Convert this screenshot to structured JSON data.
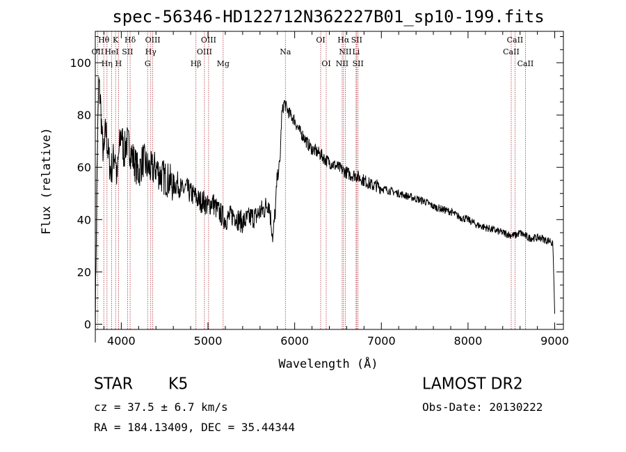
{
  "chart_data": {
    "type": "line",
    "title": "spec-56346-HD122712N362227B01_sp10-199.fits",
    "xlabel": "Wavelength (Å)",
    "ylabel": "Flux (relative)",
    "xlim": [
      3700,
      9100
    ],
    "ylim": [
      -2,
      112
    ],
    "xticks": [
      4000,
      5000,
      6000,
      7000,
      8000,
      9000
    ],
    "yticks": [
      0,
      20,
      40,
      60,
      80,
      100
    ],
    "grid": false,
    "series": [
      {
        "x": [
          3700,
          3720,
          3740,
          3760,
          3780,
          3800,
          3820,
          3850,
          3880,
          3900,
          3930,
          3950,
          3970,
          4000,
          4030,
          4060,
          4100,
          4150,
          4200,
          4250,
          4300,
          4350,
          4400,
          4450,
          4500,
          4550,
          4600,
          4650,
          4700,
          4750,
          4800,
          4850,
          4900,
          4950,
          5000,
          5050,
          5100,
          5150,
          5200,
          5250,
          5300,
          5350,
          5400,
          5450,
          5500,
          5550,
          5600,
          5650,
          5700,
          5750,
          5780,
          5800,
          5830,
          5850,
          5880,
          5900,
          5950,
          6000,
          6050,
          6100,
          6150,
          6200,
          6250,
          6300,
          6350,
          6400,
          6450,
          6500,
          6550,
          6600,
          6650,
          6700,
          6750,
          6800,
          6850,
          6900,
          6950,
          7000,
          7100,
          7200,
          7300,
          7400,
          7500,
          7600,
          7700,
          7800,
          7900,
          8000,
          8100,
          8200,
          8300,
          8400,
          8500,
          8550,
          8600,
          8650,
          8700,
          8750,
          8800,
          8850,
          8900,
          8950,
          8980,
          9000
        ],
        "values": [
          0,
          60,
          92,
          85,
          70,
          64,
          75,
          65,
          58,
          62,
          66,
          55,
          65,
          74,
          65,
          70,
          67,
          62,
          58,
          63,
          60,
          59,
          60,
          57,
          56,
          55,
          53,
          54,
          51,
          52,
          50,
          49,
          47,
          47,
          45,
          47,
          44,
          42,
          40,
          41,
          42,
          40,
          39,
          40,
          41,
          41,
          43,
          44,
          47,
          33,
          45,
          56,
          62,
          80,
          85,
          83,
          80,
          78,
          74,
          72,
          69,
          67,
          66,
          65,
          63,
          62,
          61,
          60,
          59,
          58,
          57,
          57,
          56,
          55,
          54,
          53,
          53,
          52,
          51,
          50,
          49,
          48,
          47,
          45,
          44,
          43,
          41,
          40,
          38,
          37,
          36,
          35,
          34,
          34,
          35,
          34,
          33,
          33,
          33,
          33,
          32,
          32,
          30,
          4
        ]
      }
    ],
    "lines": [
      {
        "label": "Hθ",
        "x": 3798,
        "row": 1
      },
      {
        "label": "K",
        "x": 3934,
        "row": 1
      },
      {
        "label": "Hδ",
        "x": 4102,
        "row": 1
      },
      {
        "label": "OIII",
        "x": 4363,
        "row": 1
      },
      {
        "label": "OIII",
        "x": 5007,
        "row": 1
      },
      {
        "label": "OI",
        "x": 6300,
        "row": 1
      },
      {
        "label": "Hα",
        "x": 6563,
        "row": 1
      },
      {
        "label": "SII",
        "x": 6716,
        "row": 1
      },
      {
        "label": "CaII",
        "x": 8542,
        "row": 1
      },
      {
        "label": "OII",
        "x": 3727,
        "row": 2
      },
      {
        "label": "HeI",
        "x": 3889,
        "row": 2
      },
      {
        "label": "SII",
        "x": 4072,
        "row": 2
      },
      {
        "label": "Hγ",
        "x": 4340,
        "row": 2
      },
      {
        "label": "OIII",
        "x": 4959,
        "row": 2
      },
      {
        "label": "Na",
        "x": 5893,
        "row": 2
      },
      {
        "label": "NII",
        "x": 6584,
        "row": 2
      },
      {
        "label": "Li",
        "x": 6708,
        "row": 2
      },
      {
        "label": "CaII",
        "x": 8498,
        "row": 2
      },
      {
        "label": "Hη",
        "x": 3835,
        "row": 3
      },
      {
        "label": "H",
        "x": 3968,
        "row": 3
      },
      {
        "label": "G",
        "x": 4304,
        "row": 3
      },
      {
        "label": "Hβ",
        "x": 4861,
        "row": 3
      },
      {
        "label": "Mg",
        "x": 5175,
        "row": 3
      },
      {
        "label": "OI",
        "x": 6364,
        "row": 3
      },
      {
        "label": "NII",
        "x": 6548,
        "row": 3
      },
      {
        "label": "SII",
        "x": 6731,
        "row": 3
      },
      {
        "label": "CaII",
        "x": 8662,
        "row": 3
      }
    ]
  },
  "info": {
    "class_label": "STAR",
    "subclass": "K5",
    "cz_text": "cz = 37.5 ± 6.7 km/s",
    "radec_text": "RA = 184.13409, DEC =  35.44344",
    "survey": "LAMOST DR2",
    "obs_date_text": "Obs-Date: 20130222"
  }
}
